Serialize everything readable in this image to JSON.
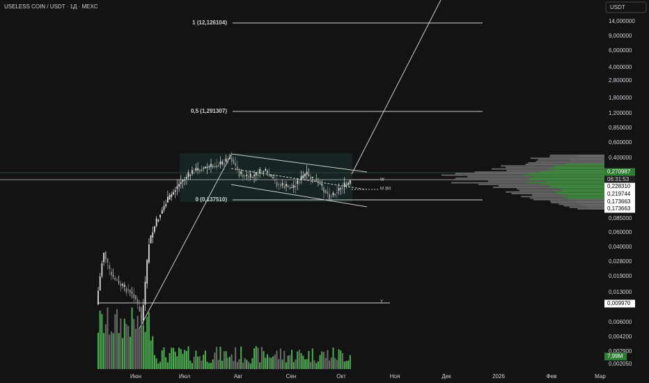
{
  "header": {
    "title": "USELESS COIN / USDT · 1Д · MEXC"
  },
  "price_axis": {
    "unit": "USDT",
    "labels": [
      "14,000000",
      "9,000000",
      "6,000000",
      "4,000000",
      "2,800000",
      "1,800000",
      "1,200000",
      "0,850000",
      "0,600000",
      "0,400000",
      "0,085000",
      "0,060000",
      "0,040000",
      "0,028000",
      "0,019000",
      "0,013000",
      "0,006000",
      "0,004200",
      "0,002900",
      "0,002050"
    ]
  },
  "price_badges": [
    "0,270987",
    "06:31:53",
    "0,228310",
    "0,219744",
    "0,173663",
    "0,173663",
    "0,009970",
    "7,99M"
  ],
  "time_axis": {
    "labels": [
      "Июн",
      "Июл",
      "Авг",
      "Сен",
      "Окт",
      "Ноя",
      "Дек",
      "2026",
      "Фев",
      "Мар"
    ]
  },
  "fib_levels": [
    "1 (12,126104)",
    "0,5 (1,291307)",
    "0 (0,137510)"
  ],
  "drawing_labels": [
    "W",
    "M 3M",
    "Y"
  ]
}
